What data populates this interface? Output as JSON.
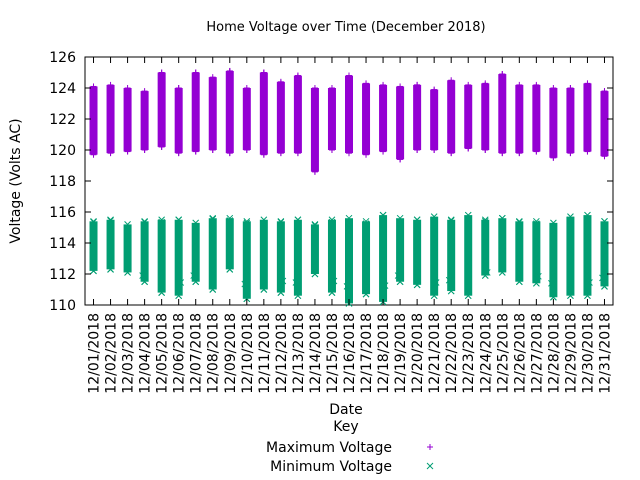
{
  "chart_data": {
    "type": "scatter",
    "title": "Home Voltage over Time (December 2018)",
    "xlabel": "Date",
    "ylabel": "Voltage (Volts AC)",
    "ylim": [
      110,
      126
    ],
    "yticks": [
      110,
      112,
      114,
      116,
      118,
      120,
      122,
      124,
      126
    ],
    "grid": false,
    "legend": {
      "title": "Key",
      "placement": "bottom-center"
    },
    "categories": [
      "12/01/2018",
      "12/02/2018",
      "12/03/2018",
      "12/04/2018",
      "12/05/2018",
      "12/06/2018",
      "12/07/2018",
      "12/08/2018",
      "12/09/2018",
      "12/10/2018",
      "12/11/2018",
      "12/12/2018",
      "12/13/2018",
      "12/14/2018",
      "12/15/2018",
      "12/16/2018",
      "12/17/2018",
      "12/18/2018",
      "12/19/2018",
      "12/20/2018",
      "12/21/2018",
      "12/22/2018",
      "12/23/2018",
      "12/24/2018",
      "12/25/2018",
      "12/26/2018",
      "12/27/2018",
      "12/28/2018",
      "12/29/2018",
      "12/30/2018",
      "12/31/2018"
    ],
    "series": [
      {
        "name": "Maximum Voltage",
        "marker": "+",
        "color": "#9400d3",
        "ranges": [
          [
            119.7,
            124.1
          ],
          [
            119.8,
            124.2
          ],
          [
            119.9,
            124.0
          ],
          [
            120.0,
            123.8
          ],
          [
            120.2,
            125.0
          ],
          [
            119.8,
            124.0
          ],
          [
            119.9,
            125.0
          ],
          [
            120.0,
            124.7
          ],
          [
            119.8,
            125.1
          ],
          [
            120.0,
            124.0
          ],
          [
            119.7,
            125.0
          ],
          [
            119.8,
            124.4
          ],
          [
            119.8,
            124.8
          ],
          [
            118.6,
            124.0
          ],
          [
            120.0,
            124.0
          ],
          [
            119.8,
            124.8
          ],
          [
            119.7,
            124.3
          ],
          [
            119.9,
            124.2
          ],
          [
            119.4,
            124.1
          ],
          [
            120.0,
            124.2
          ],
          [
            120.0,
            123.9
          ],
          [
            119.8,
            124.5
          ],
          [
            120.1,
            124.2
          ],
          [
            120.0,
            124.3
          ],
          [
            119.8,
            124.9
          ],
          [
            119.8,
            124.2
          ],
          [
            119.9,
            124.2
          ],
          [
            119.5,
            124.0
          ],
          [
            119.8,
            124.0
          ],
          [
            119.9,
            124.3
          ],
          [
            119.6,
            123.8
          ]
        ],
        "outliers": [
          [
            4,
            125.0
          ],
          [
            6,
            125.0
          ],
          [
            8,
            125.1
          ],
          [
            10,
            125.0
          ],
          [
            12,
            124.8
          ],
          [
            13,
            118.6
          ],
          [
            15,
            124.8
          ],
          [
            18,
            119.4
          ],
          [
            24,
            124.9
          ]
        ]
      },
      {
        "name": "Minimum Voltage",
        "marker": "x",
        "color": "#009e73",
        "ranges": [
          [
            112.2,
            115.4
          ],
          [
            112.3,
            115.5
          ],
          [
            112.1,
            115.2
          ],
          [
            111.5,
            115.4
          ],
          [
            110.8,
            115.5
          ],
          [
            110.6,
            115.5
          ],
          [
            111.5,
            115.3
          ],
          [
            111.0,
            115.6
          ],
          [
            112.3,
            115.6
          ],
          [
            110.4,
            115.4
          ],
          [
            111.0,
            115.5
          ],
          [
            110.8,
            115.4
          ],
          [
            110.6,
            115.5
          ],
          [
            112.0,
            115.2
          ],
          [
            110.8,
            115.5
          ],
          [
            110.1,
            115.6
          ],
          [
            110.7,
            115.4
          ],
          [
            110.2,
            115.8
          ],
          [
            111.5,
            115.6
          ],
          [
            111.3,
            115.5
          ],
          [
            110.6,
            115.7
          ],
          [
            110.9,
            115.5
          ],
          [
            110.6,
            115.8
          ],
          [
            111.9,
            115.5
          ],
          [
            112.1,
            115.6
          ],
          [
            111.5,
            115.4
          ],
          [
            111.4,
            115.4
          ],
          [
            110.5,
            115.3
          ],
          [
            110.6,
            115.7
          ],
          [
            110.6,
            115.8
          ],
          [
            111.2,
            115.4
          ]
        ]
      }
    ]
  }
}
